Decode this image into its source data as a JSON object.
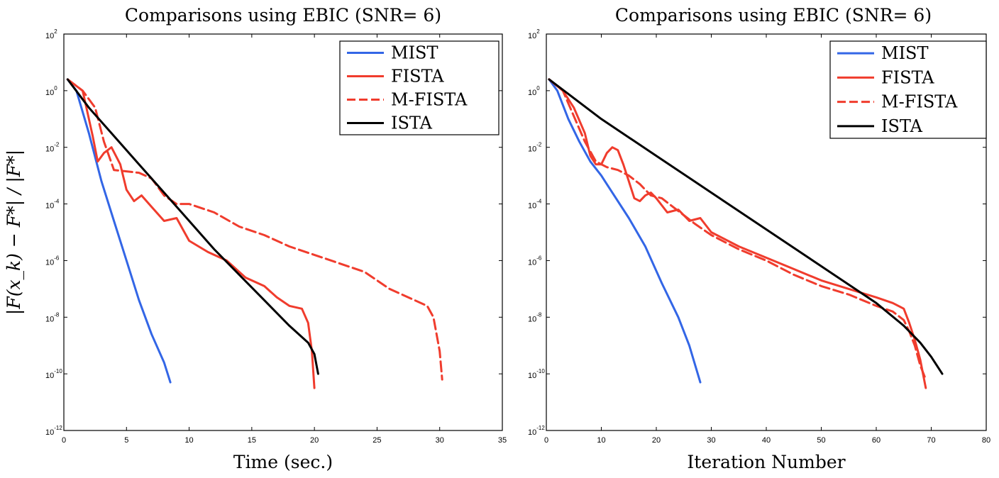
{
  "chart_data": [
    {
      "type": "line",
      "title": "Comparisons using EBIC (SNR= 6)",
      "xlabel": "Time (sec.)",
      "ylabel": "|F(x_k) − F*| / |F*|",
      "yscale": "log",
      "xlim": [
        0,
        35
      ],
      "ylim_exp": [
        -12,
        2
      ],
      "xticks": [
        0,
        5,
        10,
        15,
        20,
        25,
        30,
        35
      ],
      "yticks_exp": [
        -12,
        -10,
        -8,
        -6,
        -4,
        -2,
        0,
        2
      ],
      "ytick_base": "10",
      "legend_position": "top-right",
      "series": [
        {
          "name": "MIST",
          "color": "#3366e6",
          "dash": "solid",
          "x": [
            0.3,
            1.0,
            2.0,
            3.0,
            4.0,
            5.0,
            6.0,
            7.0,
            8.0,
            8.5
          ],
          "y_exp": [
            0.4,
            0.0,
            -1.5,
            -3.2,
            -4.6,
            -6.0,
            -7.4,
            -8.6,
            -9.6,
            -10.3
          ]
        },
        {
          "name": "FISTA",
          "color": "#f03c2d",
          "dash": "solid",
          "x": [
            0.3,
            1.5,
            2.3,
            2.7,
            3.2,
            3.8,
            4.5,
            5.0,
            5.6,
            6.2,
            7.0,
            8.0,
            9.0,
            10.0,
            11.5,
            13.0,
            14.5,
            16.0,
            17.0,
            18.0,
            19.0,
            19.5,
            19.8,
            20.0
          ],
          "y_exp": [
            0.4,
            0.0,
            -1.6,
            -2.5,
            -2.2,
            -2.0,
            -2.6,
            -3.5,
            -3.9,
            -3.7,
            -4.1,
            -4.6,
            -4.5,
            -5.3,
            -5.7,
            -6.0,
            -6.6,
            -6.9,
            -7.3,
            -7.6,
            -7.7,
            -8.2,
            -9.2,
            -10.5
          ]
        },
        {
          "name": "M-FISTA",
          "color": "#f03c2d",
          "dash": "dashed",
          "x": [
            0.3,
            1.5,
            2.5,
            3.2,
            4.0,
            6.0,
            7.0,
            8.0,
            9.0,
            10.0,
            12.0,
            14.0,
            16.0,
            18.0,
            20.0,
            22.0,
            24.0,
            26.0,
            28.0,
            29.0,
            29.5,
            30.0,
            30.2
          ],
          "y_exp": [
            0.4,
            0.0,
            -0.6,
            -1.8,
            -2.8,
            -2.9,
            -3.1,
            -3.7,
            -4.0,
            -4.0,
            -4.3,
            -4.8,
            -5.1,
            -5.5,
            -5.8,
            -6.1,
            -6.4,
            -7.0,
            -7.4,
            -7.6,
            -8.0,
            -9.2,
            -10.2
          ]
        },
        {
          "name": "ISTA",
          "color": "#000000",
          "dash": "solid",
          "x": [
            0.3,
            2.0,
            4.0,
            6.0,
            8.0,
            10.0,
            12.0,
            14.0,
            16.0,
            18.0,
            19.5,
            20.0,
            20.3
          ],
          "y_exp": [
            0.4,
            -0.6,
            -1.6,
            -2.6,
            -3.6,
            -4.6,
            -5.6,
            -6.5,
            -7.4,
            -8.3,
            -8.9,
            -9.3,
            -10.0
          ]
        }
      ]
    },
    {
      "type": "line",
      "title": "Comparisons using EBIC (SNR= 6)",
      "xlabel": "Iteration Number",
      "ylabel": "",
      "yscale": "log",
      "xlim": [
        0,
        80
      ],
      "ylim_exp": [
        -12,
        2
      ],
      "xticks": [
        0,
        10,
        20,
        30,
        40,
        50,
        60,
        70,
        80
      ],
      "yticks_exp": [
        -12,
        -10,
        -8,
        -6,
        -4,
        -2,
        0,
        2
      ],
      "ytick_base": "10",
      "legend_position": "top-right",
      "series": [
        {
          "name": "MIST",
          "color": "#3366e6",
          "dash": "solid",
          "x": [
            0.5,
            2,
            4,
            6,
            8,
            10,
            12,
            15,
            18,
            21,
            24,
            26,
            28
          ],
          "y_exp": [
            0.4,
            0.0,
            -1.0,
            -1.8,
            -2.5,
            -3.0,
            -3.6,
            -4.5,
            -5.5,
            -6.8,
            -8.0,
            -9.0,
            -10.3
          ]
        },
        {
          "name": "FISTA",
          "color": "#f03c2d",
          "dash": "solid",
          "x": [
            0.5,
            3,
            5,
            7,
            8,
            9,
            10,
            11,
            12,
            13,
            14,
            15,
            16,
            17,
            18,
            19,
            20,
            22,
            24,
            26,
            28,
            30,
            35,
            40,
            45,
            50,
            55,
            60,
            63,
            65,
            66,
            67,
            68,
            69
          ],
          "y_exp": [
            0.4,
            0.0,
            -0.6,
            -1.5,
            -2.3,
            -2.6,
            -2.6,
            -2.2,
            -2.0,
            -2.1,
            -2.6,
            -3.2,
            -3.8,
            -3.9,
            -3.7,
            -3.6,
            -3.8,
            -4.3,
            -4.2,
            -4.6,
            -4.5,
            -5.0,
            -5.5,
            -5.9,
            -6.3,
            -6.7,
            -7.0,
            -7.3,
            -7.5,
            -7.7,
            -8.2,
            -8.8,
            -9.5,
            -10.5
          ]
        },
        {
          "name": "M-FISTA",
          "color": "#f03c2d",
          "dash": "dashed",
          "x": [
            0.5,
            3,
            5,
            7,
            9,
            11,
            13,
            15,
            17,
            19,
            21,
            23,
            25,
            27,
            30,
            35,
            40,
            45,
            50,
            55,
            60,
            63,
            65,
            66,
            67,
            68,
            69
          ],
          "y_exp": [
            0.4,
            0.0,
            -0.9,
            -1.8,
            -2.5,
            -2.7,
            -2.8,
            -3.0,
            -3.3,
            -3.7,
            -3.8,
            -4.1,
            -4.4,
            -4.7,
            -5.1,
            -5.6,
            -6.0,
            -6.5,
            -6.9,
            -7.2,
            -7.6,
            -7.8,
            -8.1,
            -8.5,
            -9.0,
            -9.7,
            -10.2
          ]
        },
        {
          "name": "ISTA",
          "color": "#000000",
          "dash": "solid",
          "x": [
            0.5,
            10,
            20,
            30,
            40,
            50,
            60,
            65,
            68,
            70,
            71,
            72
          ],
          "y_exp": [
            0.4,
            -1.0,
            -2.3,
            -3.6,
            -4.9,
            -6.2,
            -7.5,
            -8.3,
            -8.9,
            -9.4,
            -9.7,
            -10.0
          ]
        }
      ]
    }
  ]
}
